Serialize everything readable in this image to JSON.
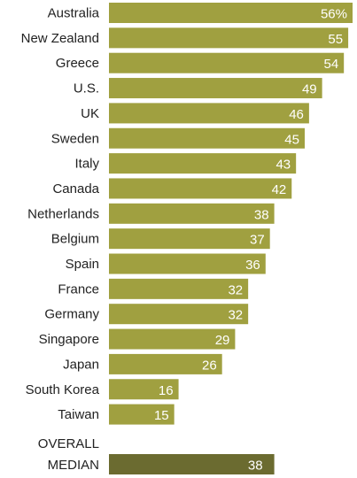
{
  "colors": {
    "bar": "#a0a040",
    "median_bar": "#6b6b30",
    "label": "#222222",
    "value_label": "#ffffff"
  },
  "chart_data": {
    "type": "bar",
    "orientation": "horizontal",
    "categories": [
      "Australia",
      "New Zealand",
      "Greece",
      "U.S.",
      "UK",
      "Sweden",
      "Italy",
      "Canada",
      "Netherlands",
      "Belgium",
      "Spain",
      "France",
      "Germany",
      "Singapore",
      "Japan",
      "South Korea",
      "Taiwan"
    ],
    "values": [
      56,
      55,
      54,
      49,
      46,
      45,
      43,
      42,
      38,
      37,
      36,
      32,
      32,
      29,
      26,
      16,
      15
    ],
    "value_labels": [
      "56%",
      "55",
      "54",
      "49",
      "46",
      "45",
      "43",
      "42",
      "38",
      "37",
      "36",
      "32",
      "32",
      "29",
      "26",
      "16",
      "15"
    ],
    "median": {
      "label_lines": [
        "OVERALL",
        "MEDIAN"
      ],
      "value": 38,
      "value_label": "38"
    },
    "xlim": [
      0,
      56
    ],
    "grid": false,
    "title": "",
    "xlabel": "",
    "ylabel": ""
  }
}
